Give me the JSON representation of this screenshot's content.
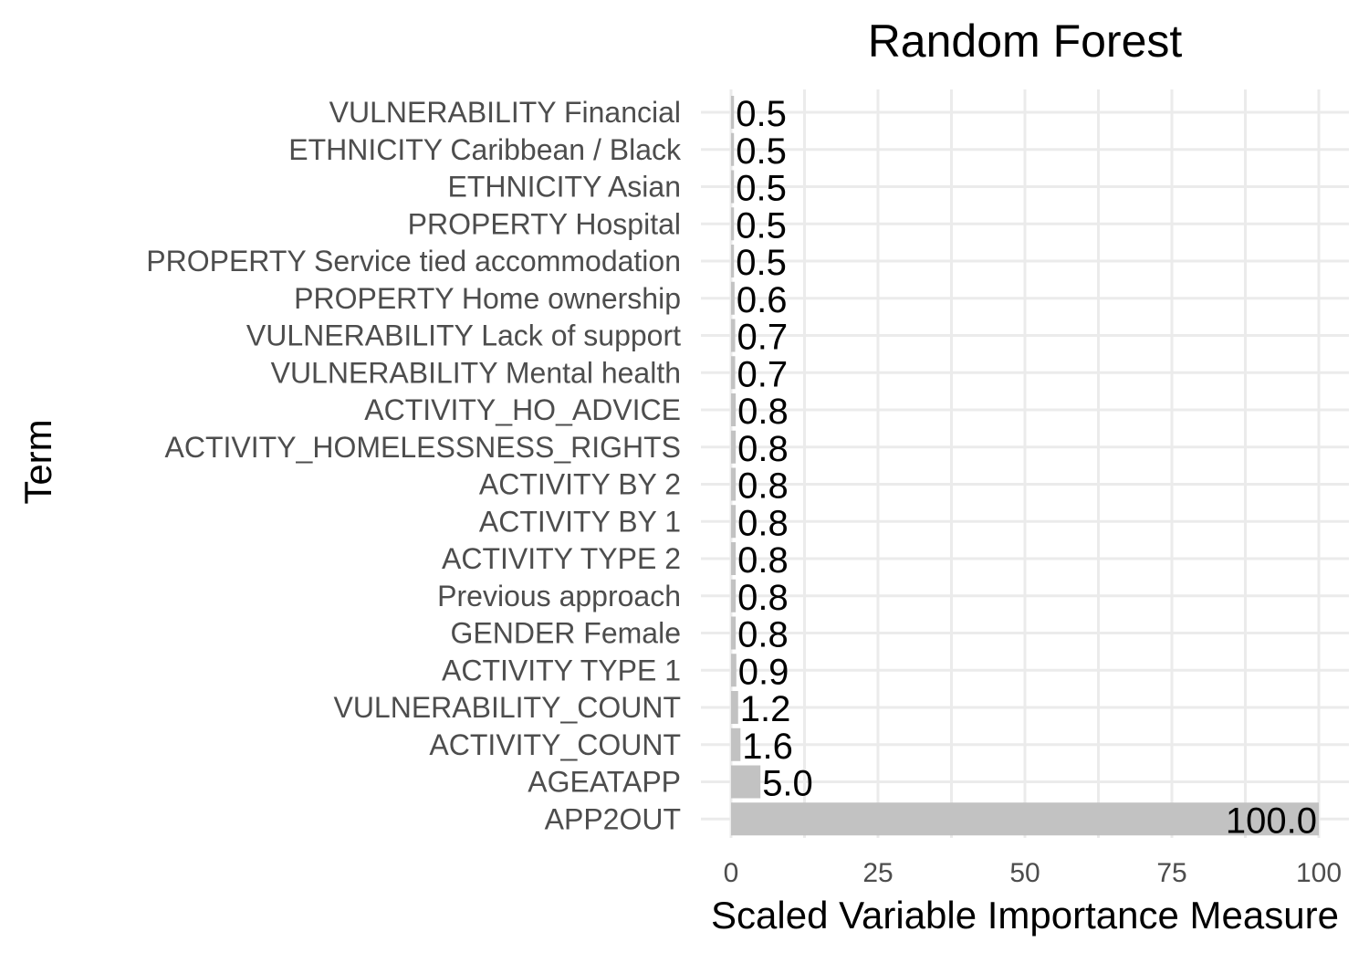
{
  "chart_data": {
    "type": "bar",
    "orientation": "horizontal",
    "title": "Random Forest",
    "xlabel": "Scaled Variable Importance Measure",
    "ylabel": "Term",
    "xlim": [
      0,
      100
    ],
    "xticks": [
      0,
      25,
      50,
      75,
      100
    ],
    "grid": true,
    "legend": "none",
    "colors": {
      "bar": "#c2c2c2",
      "grid": "#ebebeb",
      "tick_text": "#4d4d4d",
      "text": "#000000"
    },
    "categories": [
      "VULNERABILITY Financial",
      "ETHNICITY Caribbean / Black",
      "ETHNICITY Asian",
      "PROPERTY Hospital",
      "PROPERTY Service tied accommodation",
      "PROPERTY Home ownership",
      "VULNERABILITY Lack of support",
      "VULNERABILITY Mental health",
      "ACTIVITY_HO_ADVICE",
      "ACTIVITY_HOMELESSNESS_RIGHTS",
      "ACTIVITY BY 2",
      "ACTIVITY BY 1",
      "ACTIVITY TYPE 2",
      "Previous approach",
      "GENDER Female",
      "ACTIVITY TYPE 1",
      "VULNERABILITY_COUNT",
      "ACTIVITY_COUNT",
      "AGEATAPP",
      "APP2OUT"
    ],
    "values": [
      0.5,
      0.5,
      0.5,
      0.5,
      0.5,
      0.6,
      0.7,
      0.7,
      0.8,
      0.8,
      0.8,
      0.8,
      0.8,
      0.8,
      0.8,
      0.9,
      1.2,
      1.6,
      5.0,
      100.0
    ],
    "labels": [
      "0.5",
      "0.5",
      "0.5",
      "0.5",
      "0.5",
      "0.6",
      "0.7",
      "0.7",
      "0.8",
      "0.8",
      "0.8",
      "0.8",
      "0.8",
      "0.8",
      "0.8",
      "0.9",
      "1.2",
      "1.6",
      "5.0",
      "100.0"
    ]
  }
}
